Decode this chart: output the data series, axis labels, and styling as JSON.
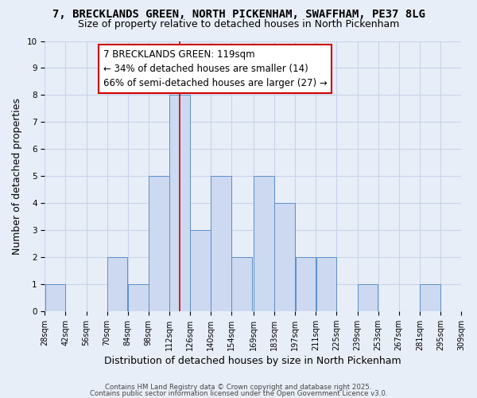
{
  "title1": "7, BRECKLANDS GREEN, NORTH PICKENHAM, SWAFFHAM, PE37 8LG",
  "title2": "Size of property relative to detached houses in North Pickenham",
  "xlabel": "Distribution of detached houses by size in North Pickenham",
  "ylabel": "Number of detached properties",
  "bin_edges": [
    28,
    42,
    56,
    70,
    84,
    98,
    112,
    126,
    140,
    154,
    169,
    183,
    197,
    211,
    225,
    239,
    253,
    267,
    281,
    295,
    309
  ],
  "bar_heights": [
    1,
    0,
    0,
    2,
    1,
    5,
    8,
    3,
    5,
    2,
    5,
    4,
    2,
    2,
    0,
    1,
    0,
    0,
    1,
    0
  ],
  "bar_color": "#ccd9f0",
  "bar_edgecolor": "#5b8fc9",
  "grid_color": "#c8d4e8",
  "background_color": "#e8eef8",
  "property_line_x": 119,
  "property_line_color": "#cc0000",
  "ylim": [
    0,
    10
  ],
  "annotation_box_text": "7 BRECKLANDS GREEN: 119sqm\n← 34% of detached houses are smaller (14)\n66% of semi-detached houses are larger (27) →",
  "footer1": "Contains HM Land Registry data © Crown copyright and database right 2025.",
  "footer2": "Contains public sector information licensed under the Open Government Licence v3.0.",
  "title_fontsize": 10,
  "subtitle_fontsize": 9,
  "axis_label_fontsize": 9,
  "tick_fontsize": 7,
  "annotation_fontsize": 8.5
}
